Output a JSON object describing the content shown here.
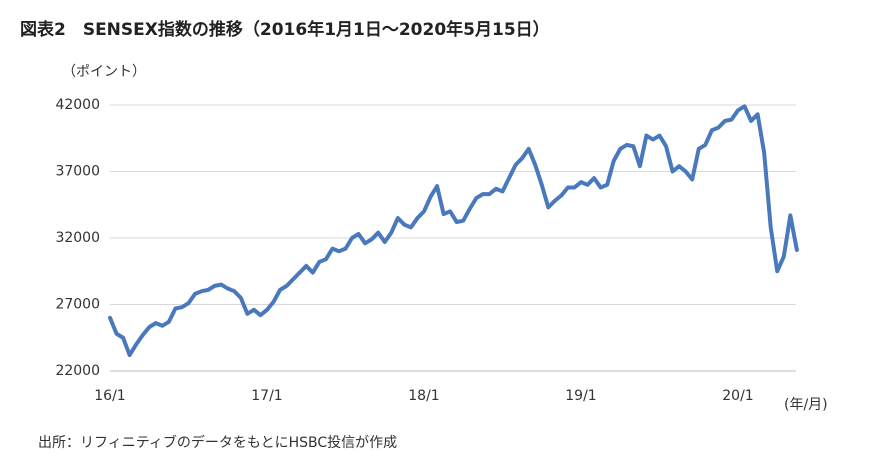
{
  "chart_data": {
    "type": "line",
    "title": "図表2　SENSEX指数の推移（2016年1月1日～2020年5月15日）",
    "y_label": "（ポイント）",
    "x_label": "(年/月)",
    "source": "出所：リフィニティブのデータをもとにHSBC投信が作成",
    "color": "#4a78bd",
    "ylim": [
      22000,
      42000
    ],
    "yticks": [
      22000,
      27000,
      32000,
      37000,
      42000
    ],
    "grid": true,
    "categories": [
      "16/1",
      null,
      null,
      null,
      null,
      null,
      null,
      null,
      null,
      null,
      null,
      null,
      null,
      null,
      null,
      null,
      null,
      null,
      null,
      null,
      null,
      null,
      null,
      null,
      "17/1",
      null,
      null,
      null,
      null,
      null,
      null,
      null,
      null,
      null,
      null,
      null,
      null,
      null,
      null,
      null,
      null,
      null,
      null,
      null,
      null,
      null,
      null,
      null,
      "18/1",
      null,
      null,
      null,
      null,
      null,
      null,
      null,
      null,
      null,
      null,
      null,
      null,
      null,
      null,
      null,
      null,
      null,
      null,
      null,
      null,
      null,
      null,
      null,
      "19/1",
      null,
      null,
      null,
      null,
      null,
      null,
      null,
      null,
      null,
      null,
      null,
      null,
      null,
      null,
      null,
      null,
      null,
      null,
      null,
      null,
      null,
      null,
      null,
      "20/1",
      null,
      null,
      null,
      null,
      null,
      null,
      null,
      null,
      null
    ],
    "values": [
      26000,
      24800,
      24500,
      23200,
      24000,
      24700,
      25300,
      25600,
      25400,
      25700,
      26700,
      26800,
      27100,
      27800,
      28000,
      28100,
      28400,
      28500,
      28200,
      28000,
      27500,
      26300,
      26600,
      26200,
      26600,
      27200,
      28100,
      28400,
      28900,
      29400,
      29900,
      29400,
      30200,
      30400,
      31200,
      31000,
      31200,
      32000,
      32300,
      31600,
      31900,
      32400,
      31700,
      32400,
      33500,
      33000,
      32800,
      33500,
      34000,
      35100,
      35900,
      33800,
      34000,
      33200,
      33300,
      34200,
      35000,
      35300,
      35300,
      35700,
      35500,
      36500,
      37500,
      38000,
      38700,
      37500,
      36000,
      34300,
      34800,
      35200,
      35800,
      35800,
      36200,
      36000,
      36500,
      35800,
      36000,
      37800,
      38700,
      39000,
      38900,
      37400,
      39700,
      39400,
      39700,
      38900,
      37000,
      37400,
      37000,
      36400,
      38700,
      39000,
      40100,
      40300,
      40800,
      40900,
      41600,
      41900,
      40800,
      41300,
      38400,
      32800,
      29500,
      30600,
      33700,
      31100
    ]
  }
}
